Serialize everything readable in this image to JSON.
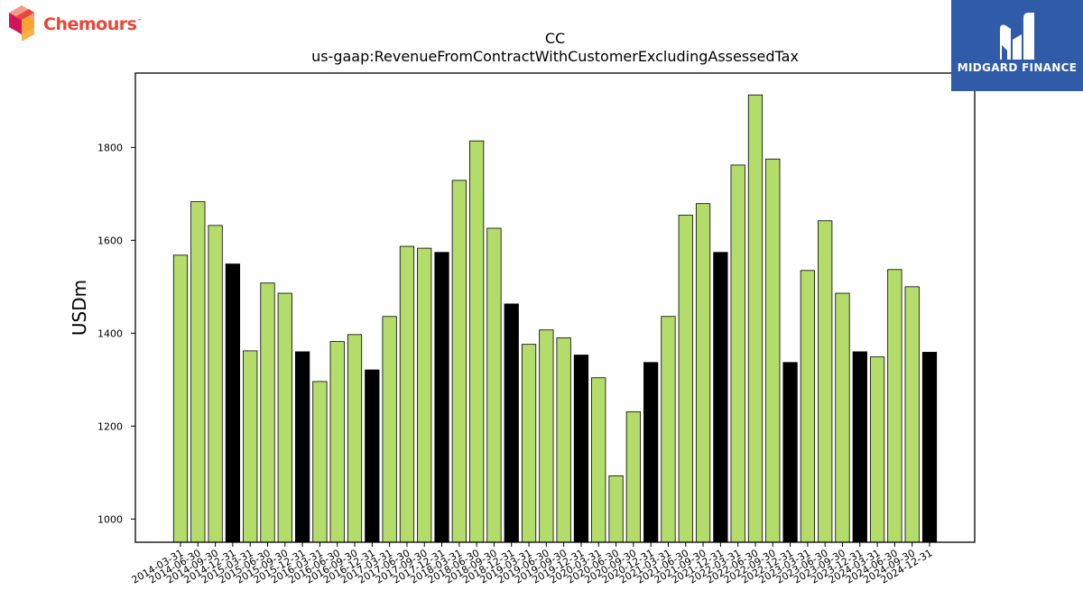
{
  "logos": {
    "left_brand": "Chemours",
    "left_trademark": "™",
    "right_brand": "MIDGARD FINANCE"
  },
  "colors": {
    "bar_regular": "#b3dc6a",
    "bar_q4": "#000000",
    "right_logo_bg": "#2f5ba8",
    "left_logo_accent": "#e8463a"
  },
  "chart_data": {
    "type": "bar",
    "title": "CC",
    "subtitle": "us-gaap:RevenueFromContractWithCustomerExcludingAssessedTax",
    "xlabel": "",
    "ylabel": "USDm",
    "ylim": [
      950,
      1960
    ],
    "yticks": [
      1000,
      1200,
      1400,
      1600,
      1800
    ],
    "grid": false,
    "categories": [
      "2014-03-31",
      "2014-06-30",
      "2014-09-30",
      "2014-12-31",
      "2015-03-31",
      "2015-06-30",
      "2015-09-30",
      "2015-12-31",
      "2016-03-31",
      "2016-06-30",
      "2016-09-30",
      "2016-12-31",
      "2017-03-31",
      "2017-06-30",
      "2017-09-30",
      "2017-12-31",
      "2018-03-31",
      "2018-06-30",
      "2018-09-30",
      "2018-12-31",
      "2019-03-31",
      "2019-06-30",
      "2019-09-30",
      "2019-12-31",
      "2020-03-31",
      "2020-06-30",
      "2020-09-30",
      "2020-12-31",
      "2021-03-31",
      "2021-06-30",
      "2021-09-30",
      "2021-12-31",
      "2022-03-31",
      "2022-06-30",
      "2022-09-30",
      "2022-12-31",
      "2023-03-31",
      "2023-06-30",
      "2023-09-30",
      "2023-12-31",
      "2024-03-31",
      "2024-06-30",
      "2024-09-30",
      "2024-12-31"
    ],
    "values": [
      1568,
      1683,
      1632,
      1549,
      1362,
      1508,
      1486,
      1360,
      1296,
      1382,
      1397,
      1321,
      1436,
      1587,
      1583,
      1574,
      1729,
      1814,
      1626,
      1463,
      1376,
      1407,
      1390,
      1353,
      1304,
      1093,
      1231,
      1337,
      1436,
      1654,
      1679,
      1574,
      1762,
      1913,
      1775,
      1337,
      1535,
      1642,
      1486,
      1360,
      1349,
      1537,
      1500,
      1359
    ],
    "highlight": [
      false,
      false,
      false,
      true,
      false,
      false,
      false,
      true,
      false,
      false,
      false,
      true,
      false,
      false,
      false,
      true,
      false,
      false,
      false,
      true,
      false,
      false,
      false,
      true,
      false,
      false,
      false,
      true,
      false,
      false,
      false,
      true,
      false,
      false,
      false,
      true,
      false,
      false,
      false,
      true,
      false,
      false,
      false,
      true
    ]
  }
}
